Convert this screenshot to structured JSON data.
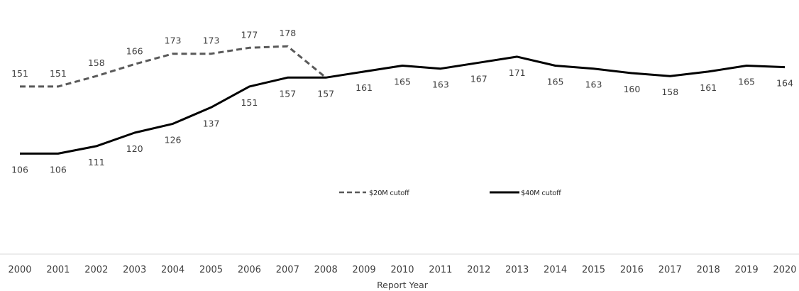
{
  "chart_data": {
    "type": "line",
    "title": "",
    "xlabel": "Report Year",
    "ylabel": "",
    "ylim": [
      0,
      200
    ],
    "grid": false,
    "legend_position": "center",
    "categories": [
      "2000",
      "2001",
      "2002",
      "2003",
      "2004",
      "2005",
      "2006",
      "2007",
      "2008",
      "2009",
      "2010",
      "2011",
      "2012",
      "2013",
      "2014",
      "2015",
      "2016",
      "2017",
      "2018",
      "2019",
      "2020"
    ],
    "series": [
      {
        "name": "$20M cutoff",
        "style": "dashed",
        "color": "#595959",
        "values": [
          151,
          151,
          158,
          166,
          173,
          173,
          177,
          178,
          157,
          null,
          null,
          null,
          null,
          null,
          null,
          null,
          null,
          null,
          null,
          null,
          null
        ]
      },
      {
        "name": "$40M cutoff",
        "style": "solid",
        "color": "#000000",
        "values": [
          106,
          106,
          111,
          120,
          126,
          137,
          151,
          157,
          157,
          161,
          165,
          163,
          167,
          171,
          165,
          163,
          160,
          158,
          161,
          165,
          164
        ]
      }
    ]
  }
}
